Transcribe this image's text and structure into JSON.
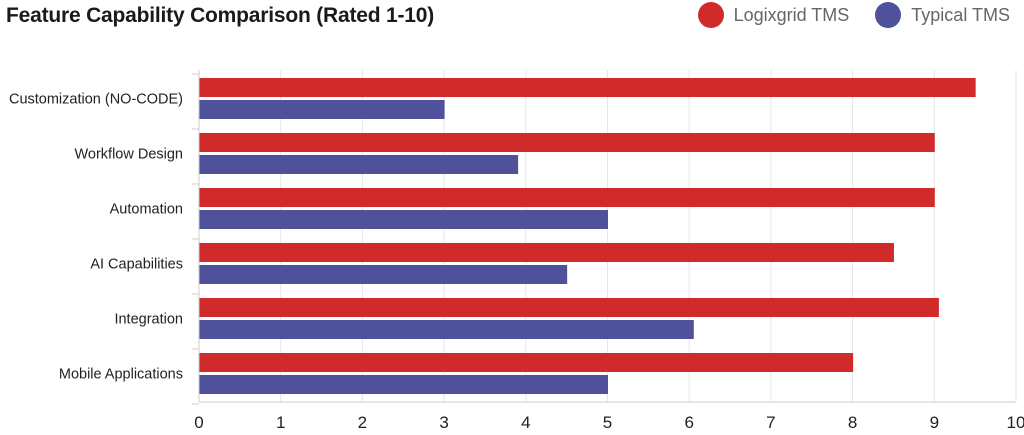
{
  "chart_data": {
    "type": "bar",
    "orientation": "horizontal",
    "title": "Feature Capability Comparison (Rated 1-10)",
    "categories": [
      "Customization (NO-CODE)",
      "Workflow Design",
      "Automation",
      "AI Capabilities",
      "Integration",
      "Mobile Applications"
    ],
    "series": [
      {
        "name": "Logixgrid TMS",
        "color": "#d12a2a",
        "values": [
          9.5,
          9.0,
          9.0,
          8.5,
          9.05,
          8.0
        ]
      },
      {
        "name": "Typical TMS",
        "color": "#4f519a",
        "values": [
          3.0,
          3.9,
          5.0,
          4.5,
          6.05,
          5.0
        ]
      }
    ],
    "xlim": [
      0,
      10
    ],
    "xticks": [
      "0",
      "1",
      "2",
      "3",
      "4",
      "5",
      "6",
      "7",
      "8",
      "9",
      "10"
    ],
    "grid": "vertical",
    "legend_position": "top-right"
  }
}
